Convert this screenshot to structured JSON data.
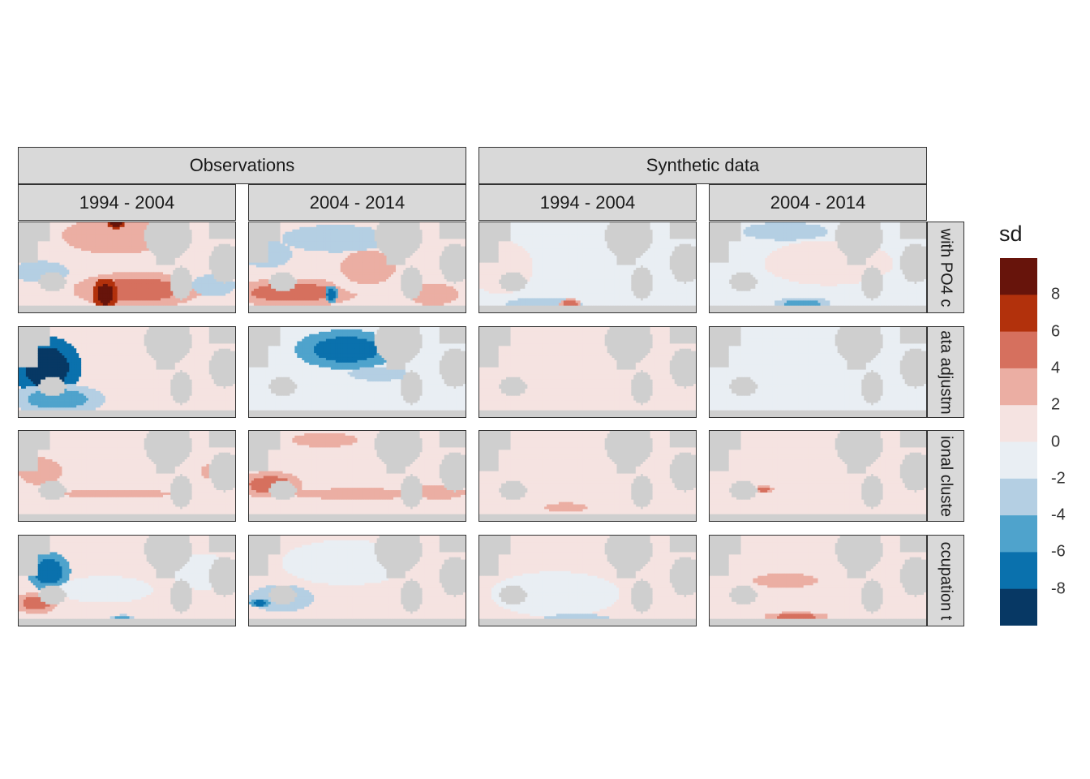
{
  "chart_data": {
    "type": "heatmap",
    "description_free": true,
    "column_groups": [
      {
        "label": "Observations",
        "columns": [
          "1994 - 2004",
          "2004 - 2014"
        ]
      },
      {
        "label": "Synthetic data",
        "columns": [
          "1994 - 2004",
          "2004 - 2014"
        ]
      }
    ],
    "rows": [
      "with PO4 c",
      "ata adjustm",
      "ional cluste",
      "ccupation t"
    ],
    "legend": {
      "title": "sd",
      "breaks": [
        "8",
        "6",
        "4",
        "2",
        "0",
        "-2",
        "-4",
        "-6",
        "-8"
      ],
      "bins": [
        {
          "from": 8,
          "to": 10,
          "color": "#67140b"
        },
        {
          "from": 6,
          "to": 8,
          "color": "#b2310c"
        },
        {
          "from": 4,
          "to": 6,
          "color": "#d6705e"
        },
        {
          "from": 2,
          "to": 4,
          "color": "#ebaea3"
        },
        {
          "from": 0,
          "to": 2,
          "color": "#f5e3e1"
        },
        {
          "from": -2,
          "to": 0,
          "color": "#e9eef3"
        },
        {
          "from": -4,
          "to": -2,
          "color": "#b4cfe3"
        },
        {
          "from": -6,
          "to": -4,
          "color": "#4fa3cc"
        },
        {
          "from": -8,
          "to": -6,
          "color": "#0a71ad"
        },
        {
          "from": -10,
          "to": -8,
          "color": "#073864"
        }
      ]
    },
    "panels": [
      {
        "row": 0,
        "col": 0,
        "base": 1,
        "blobs": [
          {
            "x": 0.55,
            "y": 0.75,
            "rx": 0.3,
            "ry": 0.2,
            "v": 5
          },
          {
            "x": 0.4,
            "y": 0.8,
            "rx": 0.06,
            "ry": 0.18,
            "v": 9
          },
          {
            "x": 0.45,
            "y": 0.15,
            "rx": 0.25,
            "ry": 0.2,
            "v": 3
          },
          {
            "x": 0.1,
            "y": 0.55,
            "rx": 0.13,
            "ry": 0.12,
            "v": -3
          },
          {
            "x": 0.9,
            "y": 0.7,
            "rx": 0.1,
            "ry": 0.12,
            "v": -3
          },
          {
            "x": 0.45,
            "y": 0.02,
            "rx": 0.04,
            "ry": 0.05,
            "v": 9
          }
        ]
      },
      {
        "row": 0,
        "col": 1,
        "base": 1,
        "blobs": [
          {
            "x": 0.2,
            "y": 0.78,
            "rx": 0.3,
            "ry": 0.16,
            "v": 5
          },
          {
            "x": 0.55,
            "y": 0.5,
            "rx": 0.2,
            "ry": 0.3,
            "v": 2
          },
          {
            "x": 0.08,
            "y": 0.35,
            "rx": 0.12,
            "ry": 0.15,
            "v": -3
          },
          {
            "x": 0.4,
            "y": 0.18,
            "rx": 0.25,
            "ry": 0.15,
            "v": -3
          },
          {
            "x": 0.85,
            "y": 0.8,
            "rx": 0.12,
            "ry": 0.12,
            "v": 3
          },
          {
            "x": 0.38,
            "y": 0.8,
            "rx": 0.03,
            "ry": 0.1,
            "v": -8
          }
        ]
      },
      {
        "row": 0,
        "col": 2,
        "base": -1,
        "blobs": [
          {
            "x": 0.1,
            "y": 0.5,
            "rx": 0.15,
            "ry": 0.3,
            "v": 1
          },
          {
            "x": 0.3,
            "y": 0.9,
            "rx": 0.18,
            "ry": 0.06,
            "v": -3
          },
          {
            "x": 0.42,
            "y": 0.9,
            "rx": 0.05,
            "ry": 0.05,
            "v": 5
          }
        ]
      },
      {
        "row": 0,
        "col": 3,
        "base": -1,
        "blobs": [
          {
            "x": 0.55,
            "y": 0.45,
            "rx": 0.3,
            "ry": 0.25,
            "v": 1
          },
          {
            "x": 0.43,
            "y": 0.9,
            "rx": 0.13,
            "ry": 0.07,
            "v": -5
          },
          {
            "x": 0.35,
            "y": 0.1,
            "rx": 0.2,
            "ry": 0.1,
            "v": -3
          }
        ]
      },
      {
        "row": 1,
        "col": 0,
        "base": 1,
        "blobs": [
          {
            "x": 0.13,
            "y": 0.45,
            "rx": 0.16,
            "ry": 0.35,
            "v": -9
          },
          {
            "x": 0.18,
            "y": 0.8,
            "rx": 0.22,
            "ry": 0.17,
            "v": -5
          }
        ]
      },
      {
        "row": 1,
        "col": 1,
        "base": -1,
        "blobs": [
          {
            "x": 0.45,
            "y": 0.25,
            "rx": 0.24,
            "ry": 0.22,
            "v": -7
          },
          {
            "x": 0.6,
            "y": 0.52,
            "rx": 0.14,
            "ry": 0.08,
            "v": -3
          }
        ]
      },
      {
        "row": 1,
        "col": 2,
        "base": 1,
        "blobs": []
      },
      {
        "row": 1,
        "col": 3,
        "base": -1,
        "blobs": []
      },
      {
        "row": 2,
        "col": 0,
        "base": 1,
        "blobs": [
          {
            "x": 0.1,
            "y": 0.45,
            "rx": 0.1,
            "ry": 0.15,
            "v": 3
          },
          {
            "x": 0.92,
            "y": 0.45,
            "rx": 0.08,
            "ry": 0.1,
            "v": 3
          },
          {
            "x": 0.45,
            "y": 0.7,
            "rx": 0.25,
            "ry": 0.05,
            "v": 3
          }
        ]
      },
      {
        "row": 2,
        "col": 1,
        "base": 1,
        "blobs": [
          {
            "x": 0.1,
            "y": 0.6,
            "rx": 0.15,
            "ry": 0.15,
            "v": 4
          },
          {
            "x": 0.5,
            "y": 0.7,
            "rx": 0.3,
            "ry": 0.06,
            "v": 3
          },
          {
            "x": 0.88,
            "y": 0.68,
            "rx": 0.12,
            "ry": 0.08,
            "v": 3
          },
          {
            "x": 0.35,
            "y": 0.1,
            "rx": 0.15,
            "ry": 0.08,
            "v": 3
          }
        ]
      },
      {
        "row": 2,
        "col": 2,
        "base": 1,
        "blobs": [
          {
            "x": 0.4,
            "y": 0.85,
            "rx": 0.1,
            "ry": 0.05,
            "v": 3
          },
          {
            "x": 0.98,
            "y": 0.01,
            "rx": 0.02,
            "ry": 0.03,
            "v": 9
          }
        ]
      },
      {
        "row": 2,
        "col": 3,
        "base": 1,
        "blobs": [
          {
            "x": 0.25,
            "y": 0.65,
            "rx": 0.05,
            "ry": 0.04,
            "v": 4
          }
        ]
      },
      {
        "row": 3,
        "col": 0,
        "base": 1,
        "blobs": [
          {
            "x": 0.14,
            "y": 0.4,
            "rx": 0.1,
            "ry": 0.22,
            "v": -7
          },
          {
            "x": 0.08,
            "y": 0.75,
            "rx": 0.1,
            "ry": 0.12,
            "v": 4
          },
          {
            "x": 0.4,
            "y": 0.6,
            "rx": 0.22,
            "ry": 0.15,
            "v": -1
          },
          {
            "x": 0.85,
            "y": 0.4,
            "rx": 0.14,
            "ry": 0.2,
            "v": -1
          },
          {
            "x": 0.48,
            "y": 0.92,
            "rx": 0.06,
            "ry": 0.04,
            "v": -5
          }
        ]
      },
      {
        "row": 3,
        "col": 1,
        "base": 1,
        "blobs": [
          {
            "x": 0.15,
            "y": 0.7,
            "rx": 0.15,
            "ry": 0.15,
            "v": -3
          },
          {
            "x": 0.05,
            "y": 0.75,
            "rx": 0.05,
            "ry": 0.05,
            "v": -8
          },
          {
            "x": 0.45,
            "y": 0.3,
            "rx": 0.3,
            "ry": 0.25,
            "v": -1
          }
        ]
      },
      {
        "row": 3,
        "col": 2,
        "base": 1,
        "blobs": [
          {
            "x": 0.35,
            "y": 0.65,
            "rx": 0.3,
            "ry": 0.25,
            "v": -1
          },
          {
            "x": 0.45,
            "y": 0.92,
            "rx": 0.15,
            "ry": 0.05,
            "v": -3
          }
        ]
      },
      {
        "row": 3,
        "col": 3,
        "base": 1,
        "blobs": [
          {
            "x": 0.4,
            "y": 0.9,
            "rx": 0.15,
            "ry": 0.05,
            "v": 4
          },
          {
            "x": 0.35,
            "y": 0.5,
            "rx": 0.15,
            "ry": 0.08,
            "v": 3
          }
        ]
      }
    ]
  },
  "colors": {
    "land": "#cfcfcf",
    "strip_bg": "#d9d9d9",
    "frame": "#333333"
  }
}
